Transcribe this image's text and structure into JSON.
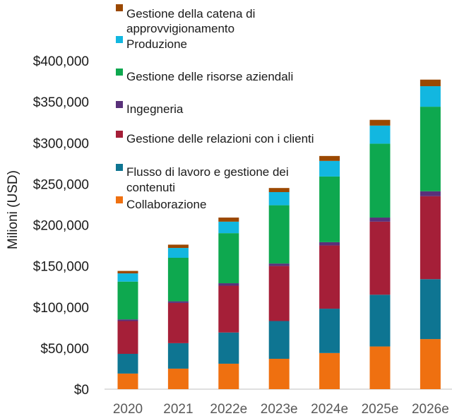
{
  "chart_data": {
    "type": "bar",
    "stacked": true,
    "ylabel": "Milioni (USD)",
    "xlabel": "",
    "ylim": [
      0,
      400000
    ],
    "yticks": [
      0,
      50000,
      100000,
      150000,
      200000,
      250000,
      300000,
      350000,
      400000
    ],
    "ytick_labels": [
      "$0",
      "$50,000",
      "$100,000",
      "$150,000",
      "$200,000",
      "$250,000",
      "$300,000",
      "$350,000",
      "$400,000"
    ],
    "categories": [
      "2020",
      "2021",
      "2022e",
      "2023e",
      "2024e",
      "2025e",
      "2026e"
    ],
    "grid": false,
    "legend_position": "top-center",
    "series": [
      {
        "name": "Collaborazione",
        "color": "#ef7010",
        "values": [
          19000,
          25000,
          31000,
          37000,
          44000,
          52000,
          61000
        ]
      },
      {
        "name": "Flusso di lavoro e gestione dei contenuti",
        "color": "#0e7592",
        "values": [
          24000,
          31000,
          38000,
          46000,
          54000,
          63000,
          73000
        ]
      },
      {
        "name": "Gestione delle relazioni con i clienti",
        "color": "#a51f38",
        "values": [
          40000,
          49000,
          57000,
          67000,
          77000,
          89000,
          101000
        ]
      },
      {
        "name": "Ingegneria",
        "color": "#59317a",
        "values": [
          2000,
          2000,
          3000,
          3000,
          4000,
          5000,
          6000
        ]
      },
      {
        "name": "Gestione delle risorse aziendali",
        "color": "#0ea84f",
        "values": [
          46000,
          53000,
          61000,
          71000,
          80000,
          90000,
          103000
        ]
      },
      {
        "name": "Produzione",
        "color": "#12b7e0",
        "values": [
          10000,
          12000,
          14000,
          16000,
          19000,
          22000,
          25000
        ]
      },
      {
        "name": "Gestione della catena di approvvigionamento",
        "color": "#9b4800",
        "values": [
          3000,
          4000,
          5000,
          5000,
          6000,
          7000,
          8000
        ]
      }
    ],
    "legend_items": [
      {
        "series_index": 6,
        "lines": [
          "Gestione della catena di",
          "approvvigionamento"
        ]
      },
      {
        "series_index": 5,
        "lines": [
          "Produzione"
        ]
      },
      {
        "series_index": 4,
        "lines": [
          "Gestione delle risorse aziendali"
        ]
      },
      {
        "series_index": 3,
        "lines": [
          "Ingegneria"
        ]
      },
      {
        "series_index": 2,
        "lines": [
          "Gestione delle relazioni con i clienti"
        ]
      },
      {
        "series_index": 1,
        "lines": [
          "Flusso di lavoro e gestione dei",
          "contenuti"
        ]
      },
      {
        "series_index": 0,
        "lines": [
          "Collaborazione"
        ]
      }
    ]
  }
}
